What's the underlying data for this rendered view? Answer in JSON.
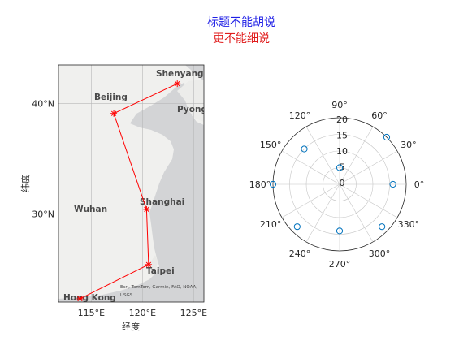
{
  "figure": {
    "title": "标题不能胡说",
    "subtitle": "更不能细说",
    "title_color": "#1f1fe6",
    "subtitle_color": "#e01b1b"
  },
  "chart_data": [
    {
      "type": "line",
      "subtype": "geographic-map",
      "xlabel": "经度",
      "ylabel": "纬度",
      "x_ticks": [
        "115°E",
        "120°E",
        "125°E"
      ],
      "y_ticks": [
        "30°N",
        "40°N"
      ],
      "xlim": [
        111.8,
        126.0
      ],
      "ylim": [
        22.0,
        43.5
      ],
      "grid": true,
      "basemap_places": [
        "Shenyang",
        "Beijing",
        "Pyong",
        "Shanghai",
        "Wuhan",
        "Taipei",
        "Hong Kong"
      ],
      "attribution": [
        "Esri, TomTom, Garmin, FAO, NOAA,",
        "USGS"
      ],
      "series": [
        {
          "color": "#ff0000",
          "marker": "*",
          "lon": [
            123.4,
            117.2,
            120.4,
            120.6,
            113.9
          ],
          "lat": [
            41.8,
            39.1,
            30.4,
            25.4,
            22.3
          ]
        }
      ]
    },
    {
      "type": "scatter",
      "subtype": "polar",
      "r_ticks": [
        "0",
        "5",
        "10",
        "15",
        "20"
      ],
      "rlim": [
        0,
        20
      ],
      "theta_ticks": [
        "0°",
        "30°",
        "60°",
        "90°",
        "120°",
        "150°",
        "180°",
        "210°",
        "240°",
        "270°",
        "300°",
        "330°"
      ],
      "grid": true,
      "marker_color": "#0072bd",
      "marker": "o",
      "theta_deg": [
        0,
        45,
        90,
        135,
        180,
        225,
        270,
        315
      ],
      "r": [
        16,
        20,
        5,
        15,
        20,
        18,
        14,
        18
      ]
    }
  ]
}
